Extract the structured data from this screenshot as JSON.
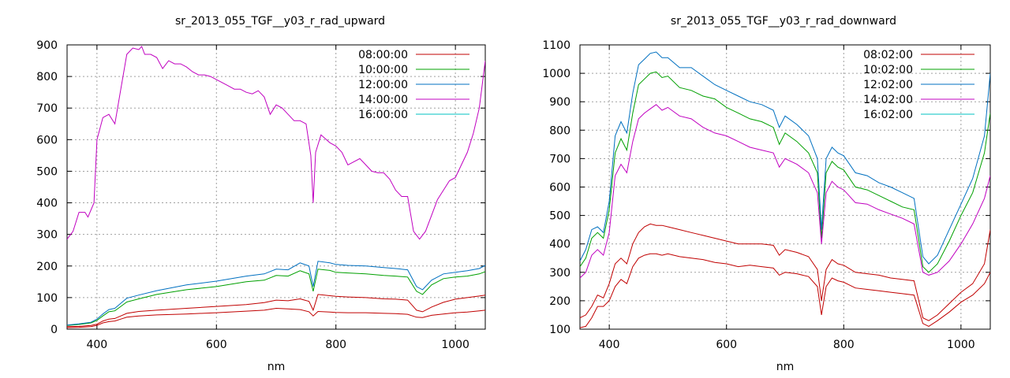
{
  "chart_data": [
    {
      "type": "line",
      "title": "sr_2013_055_TGF__y03_r_rad_upward",
      "xlabel": "nm",
      "ylabel": "",
      "xlim": [
        350,
        1050
      ],
      "ylim": [
        0,
        900
      ],
      "xticks": [
        400,
        600,
        800,
        1000
      ],
      "yticks": [
        0,
        100,
        200,
        300,
        400,
        500,
        600,
        700,
        800,
        900
      ],
      "grid": true,
      "legend": "top-right",
      "series": [
        {
          "name": "08:00:00",
          "color": "#c00000",
          "x": [
            350,
            370,
            390,
            400,
            410,
            420,
            430,
            440,
            450,
            470,
            500,
            550,
            600,
            650,
            680,
            700,
            720,
            740,
            755,
            762,
            770,
            790,
            800,
            820,
            850,
            880,
            900,
            920,
            935,
            945,
            960,
            980,
            1000,
            1020,
            1040,
            1050
          ],
          "y": [
            5,
            6,
            8,
            12,
            20,
            24,
            26,
            32,
            38,
            42,
            45,
            48,
            52,
            57,
            60,
            66,
            64,
            62,
            55,
            42,
            56,
            54,
            53,
            52,
            52,
            50,
            49,
            47,
            38,
            37,
            44,
            48,
            52,
            54,
            58,
            60
          ]
        },
        {
          "name": "08:00:00",
          "color": "#c00000",
          "x": [
            350,
            370,
            390,
            400,
            410,
            420,
            430,
            440,
            450,
            470,
            500,
            550,
            600,
            650,
            680,
            700,
            720,
            740,
            755,
            762,
            770,
            790,
            800,
            820,
            850,
            880,
            900,
            920,
            935,
            945,
            960,
            980,
            1000,
            1020,
            1040,
            1050
          ],
          "y": [
            8,
            9,
            12,
            16,
            26,
            32,
            34,
            42,
            50,
            56,
            60,
            66,
            72,
            78,
            84,
            92,
            90,
            96,
            88,
            60,
            110,
            106,
            104,
            102,
            100,
            96,
            95,
            92,
            60,
            55,
            70,
            85,
            95,
            100,
            105,
            108
          ]
        },
        {
          "name": "10:00:00",
          "color": "#00a000",
          "x": [
            350,
            370,
            390,
            400,
            410,
            420,
            430,
            440,
            450,
            470,
            500,
            550,
            600,
            650,
            680,
            700,
            720,
            740,
            755,
            762,
            770,
            790,
            800,
            820,
            850,
            880,
            900,
            920,
            935,
            945,
            960,
            980,
            1000,
            1020,
            1040,
            1050
          ],
          "y": [
            12,
            15,
            20,
            28,
            42,
            55,
            58,
            72,
            86,
            96,
            110,
            125,
            135,
            150,
            155,
            170,
            168,
            185,
            175,
            120,
            190,
            186,
            180,
            178,
            175,
            170,
            168,
            165,
            120,
            110,
            140,
            160,
            165,
            168,
            175,
            182
          ]
        },
        {
          "name": "12:00:00",
          "color": "#0070c0",
          "x": [
            350,
            370,
            390,
            400,
            410,
            420,
            430,
            440,
            450,
            470,
            500,
            550,
            600,
            650,
            680,
            700,
            720,
            740,
            755,
            762,
            770,
            790,
            800,
            820,
            850,
            880,
            900,
            920,
            935,
            945,
            960,
            980,
            1000,
            1020,
            1040,
            1050
          ],
          "y": [
            13,
            17,
            22,
            32,
            48,
            62,
            66,
            82,
            98,
            108,
            122,
            140,
            152,
            168,
            175,
            190,
            188,
            210,
            200,
            135,
            215,
            210,
            205,
            202,
            200,
            195,
            192,
            188,
            135,
            125,
            155,
            175,
            180,
            185,
            192,
            202
          ]
        },
        {
          "name": "14:00:00",
          "color": "#c000c0",
          "x": [
            350,
            360,
            370,
            380,
            385,
            395,
            400,
            410,
            420,
            430,
            440,
            450,
            460,
            470,
            475,
            480,
            490,
            500,
            510,
            520,
            530,
            540,
            550,
            560,
            570,
            580,
            590,
            600,
            610,
            620,
            630,
            640,
            650,
            660,
            670,
            680,
            690,
            700,
            710,
            720,
            730,
            740,
            750,
            758,
            762,
            766,
            775,
            790,
            800,
            810,
            820,
            840,
            850,
            860,
            870,
            880,
            890,
            900,
            910,
            920,
            930,
            940,
            950,
            960,
            970,
            980,
            990,
            1000,
            1010,
            1020,
            1030,
            1040,
            1050
          ],
          "y": [
            285,
            310,
            370,
            370,
            355,
            400,
            600,
            670,
            680,
            650,
            760,
            870,
            890,
            885,
            895,
            870,
            870,
            860,
            825,
            850,
            840,
            840,
            830,
            815,
            805,
            805,
            800,
            790,
            780,
            770,
            760,
            760,
            750,
            745,
            755,
            735,
            680,
            710,
            700,
            680,
            660,
            660,
            650,
            550,
            400,
            560,
            615,
            590,
            580,
            560,
            520,
            540,
            520,
            500,
            495,
            495,
            475,
            440,
            420,
            420,
            310,
            285,
            310,
            360,
            410,
            440,
            470,
            480,
            520,
            560,
            620,
            700,
            850
          ]
        },
        {
          "name": "16:00:00",
          "color": "#00c0c0",
          "x": [],
          "y": []
        }
      ]
    },
    {
      "type": "line",
      "title": "sr_2013_055_TGF__y03_r_rad_downward",
      "xlabel": "nm",
      "ylabel": "",
      "xlim": [
        350,
        1050
      ],
      "ylim": [
        100,
        1100
      ],
      "xticks": [
        400,
        600,
        800,
        1000
      ],
      "yticks": [
        100,
        200,
        300,
        400,
        500,
        600,
        700,
        800,
        900,
        1000,
        1100
      ],
      "grid": true,
      "legend": "top-right",
      "series": [
        {
          "name": "08:02:00",
          "color": "#c00000",
          "x": [
            350,
            360,
            370,
            380,
            390,
            400,
            410,
            420,
            430,
            440,
            450,
            460,
            470,
            480,
            490,
            500,
            520,
            540,
            560,
            580,
            600,
            620,
            640,
            660,
            680,
            690,
            700,
            720,
            740,
            755,
            762,
            770,
            780,
            790,
            800,
            820,
            840,
            860,
            880,
            900,
            920,
            935,
            945,
            960,
            980,
            1000,
            1020,
            1040,
            1050
          ],
          "y": [
            105,
            110,
            140,
            180,
            180,
            200,
            250,
            275,
            260,
            320,
            350,
            360,
            365,
            365,
            360,
            365,
            355,
            350,
            345,
            335,
            330,
            320,
            325,
            320,
            315,
            290,
            300,
            295,
            285,
            250,
            150,
            250,
            280,
            270,
            265,
            245,
            240,
            235,
            230,
            225,
            220,
            120,
            110,
            130,
            160,
            195,
            220,
            260,
            300
          ]
        },
        {
          "name": "08:02:00",
          "color": "#c00000",
          "x": [
            350,
            360,
            370,
            380,
            390,
            400,
            410,
            420,
            430,
            440,
            450,
            460,
            470,
            480,
            490,
            500,
            520,
            540,
            560,
            580,
            600,
            620,
            640,
            660,
            680,
            690,
            700,
            720,
            740,
            755,
            762,
            770,
            780,
            790,
            800,
            820,
            840,
            860,
            880,
            900,
            920,
            935,
            945,
            960,
            980,
            1000,
            1020,
            1040,
            1050
          ],
          "y": [
            140,
            150,
            180,
            220,
            210,
            260,
            330,
            350,
            330,
            400,
            440,
            460,
            470,
            465,
            465,
            460,
            450,
            440,
            430,
            420,
            410,
            400,
            400,
            400,
            395,
            360,
            380,
            370,
            355,
            310,
            200,
            310,
            345,
            330,
            325,
            300,
            295,
            290,
            280,
            275,
            270,
            140,
            130,
            150,
            190,
            230,
            260,
            330,
            450
          ]
        },
        {
          "name": "10:02:00",
          "color": "#00a000",
          "x": [
            350,
            360,
            370,
            380,
            390,
            400,
            410,
            420,
            430,
            440,
            450,
            460,
            470,
            480,
            490,
            500,
            520,
            540,
            560,
            580,
            600,
            620,
            640,
            660,
            680,
            690,
            700,
            720,
            740,
            755,
            762,
            770,
            780,
            790,
            800,
            820,
            840,
            860,
            880,
            900,
            920,
            935,
            945,
            960,
            980,
            1000,
            1020,
            1040,
            1050
          ],
          "y": [
            320,
            350,
            420,
            440,
            420,
            520,
            720,
            770,
            730,
            860,
            960,
            980,
            1000,
            1005,
            985,
            990,
            950,
            940,
            920,
            910,
            880,
            860,
            840,
            830,
            810,
            750,
            790,
            760,
            720,
            650,
            420,
            650,
            690,
            670,
            660,
            600,
            590,
            570,
            550,
            530,
            520,
            320,
            300,
            330,
            410,
            500,
            580,
            720,
            860
          ]
        },
        {
          "name": "12:02:00",
          "color": "#0070c0",
          "x": [
            350,
            360,
            370,
            380,
            390,
            400,
            410,
            420,
            430,
            440,
            450,
            460,
            470,
            480,
            490,
            500,
            520,
            540,
            560,
            580,
            600,
            620,
            640,
            660,
            680,
            690,
            700,
            720,
            740,
            755,
            762,
            770,
            780,
            790,
            800,
            820,
            840,
            860,
            880,
            900,
            920,
            935,
            945,
            960,
            980,
            1000,
            1020,
            1040,
            1050
          ],
          "y": [
            340,
            380,
            450,
            460,
            440,
            550,
            780,
            830,
            790,
            930,
            1030,
            1050,
            1070,
            1075,
            1055,
            1055,
            1020,
            1020,
            990,
            960,
            940,
            920,
            900,
            890,
            870,
            810,
            850,
            820,
            780,
            700,
            450,
            700,
            740,
            720,
            710,
            650,
            640,
            615,
            600,
            580,
            560,
            355,
            330,
            360,
            450,
            540,
            630,
            780,
            1000
          ]
        },
        {
          "name": "14:02:00",
          "color": "#c000c0",
          "x": [
            350,
            360,
            370,
            380,
            390,
            400,
            410,
            420,
            430,
            440,
            450,
            460,
            470,
            480,
            490,
            500,
            520,
            540,
            560,
            580,
            600,
            620,
            640,
            660,
            680,
            690,
            700,
            720,
            740,
            755,
            762,
            770,
            780,
            790,
            800,
            820,
            840,
            860,
            880,
            900,
            920,
            935,
            945,
            960,
            980,
            1000,
            1020,
            1040,
            1050
          ],
          "y": [
            280,
            300,
            360,
            380,
            360,
            440,
            640,
            680,
            650,
            760,
            840,
            860,
            875,
            890,
            870,
            880,
            850,
            840,
            810,
            790,
            780,
            760,
            740,
            730,
            720,
            670,
            700,
            680,
            650,
            580,
            400,
            580,
            620,
            600,
            590,
            545,
            540,
            520,
            505,
            490,
            470,
            300,
            290,
            300,
            340,
            400,
            470,
            560,
            640
          ]
        },
        {
          "name": "16:02:00",
          "color": "#00c0c0",
          "x": [],
          "y": []
        }
      ]
    }
  ]
}
